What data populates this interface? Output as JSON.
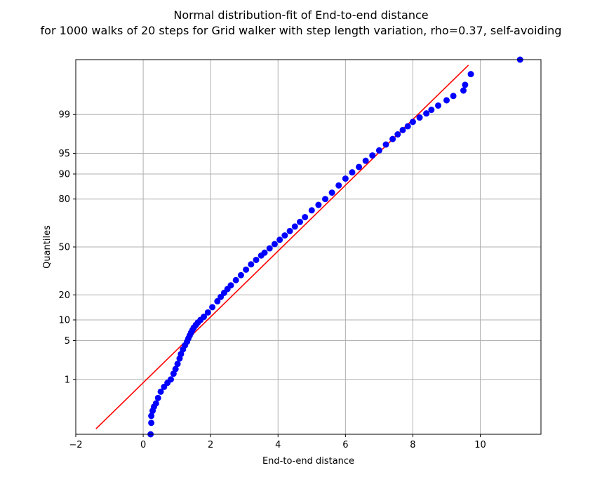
{
  "chart_data": {
    "type": "scatter",
    "title": "Normal distribution-fit of End-to-end distance",
    "subtitle": "for 1000 walks of 20 steps for Grid walker with step length variation, rho=0.37, self-avoiding",
    "xlabel": "End-to-end distance",
    "ylabel": "Quantiles",
    "xlim": [
      -2,
      11.8
    ],
    "ylim_quantile_percent": [
      0.05,
      99.95
    ],
    "y_scale": "normal probability",
    "grid": true,
    "x_ticks": [
      -2,
      0,
      2,
      4,
      6,
      8,
      10
    ],
    "x_tick_labels": [
      "−2",
      "0",
      "2",
      "4",
      "6",
      "8",
      "10"
    ],
    "y_ticks": [
      1,
      5,
      10,
      20,
      50,
      80,
      90,
      95,
      99
    ],
    "y_tick_labels": [
      "1",
      "5",
      "10",
      "20",
      "50",
      "80",
      "90",
      "95",
      "99"
    ],
    "fit_line": {
      "color": "#ff0000",
      "x": [
        -1.4,
        9.65
      ],
      "quantile_percent": [
        0.07,
        99.93
      ]
    },
    "points": {
      "color": "#0000ff",
      "x": [
        0.22,
        0.24,
        0.24,
        0.28,
        0.32,
        0.38,
        0.44,
        0.52,
        0.62,
        0.72,
        0.82,
        0.9,
        0.96,
        1.02,
        1.08,
        1.12,
        1.18,
        1.24,
        1.3,
        1.34,
        1.38,
        1.42,
        1.46,
        1.5,
        1.56,
        1.62,
        1.7,
        1.8,
        1.92,
        2.05,
        2.2,
        2.3,
        2.4,
        2.5,
        2.6,
        2.75,
        2.9,
        3.05,
        3.2,
        3.35,
        3.5,
        3.6,
        3.75,
        3.9,
        4.05,
        4.2,
        4.35,
        4.5,
        4.65,
        4.8,
        5.0,
        5.2,
        5.4,
        5.6,
        5.8,
        6.0,
        6.2,
        6.4,
        6.6,
        6.8,
        7.0,
        7.2,
        7.4,
        7.55,
        7.7,
        7.85,
        8.0,
        8.2,
        8.4,
        8.55,
        8.75,
        9.0,
        9.2,
        9.5,
        9.55,
        9.72,
        11.18
      ],
      "quantile_percent": [
        0.05,
        0.1,
        0.15,
        0.2,
        0.25,
        0.3,
        0.4,
        0.55,
        0.7,
        0.85,
        1.0,
        1.3,
        1.6,
        2.0,
        2.5,
        3.0,
        3.6,
        4.2,
        4.8,
        5.4,
        6.0,
        6.6,
        7.2,
        7.8,
        8.5,
        9.2,
        10.0,
        11.0,
        12.5,
        14.5,
        17.0,
        19.0,
        21.0,
        23.0,
        25.0,
        28.0,
        31.0,
        34.5,
        38.0,
        41.0,
        44.0,
        46.0,
        49.0,
        52.0,
        55.0,
        58.0,
        61.0,
        64.0,
        67.0,
        70.0,
        74.0,
        77.0,
        80.0,
        83.0,
        86.0,
        88.5,
        90.5,
        92.0,
        93.5,
        94.6,
        95.5,
        96.4,
        97.1,
        97.6,
        98.0,
        98.3,
        98.6,
        98.85,
        99.05,
        99.2,
        99.35,
        99.5,
        99.6,
        99.7,
        99.78,
        99.88,
        99.95
      ]
    }
  }
}
